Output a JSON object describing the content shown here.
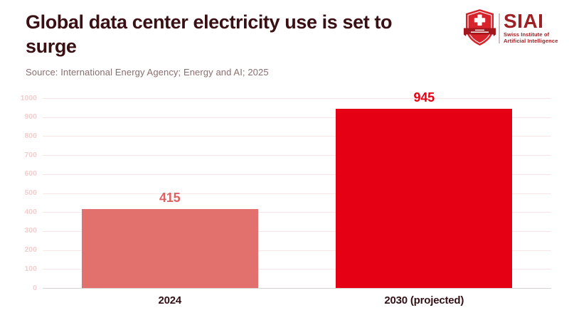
{
  "header": {
    "title_lines": [
      "Global data center electricity use is set to",
      "surge"
    ],
    "source": "Source: International Energy Agency; Energy and AI; 2025"
  },
  "logo": {
    "acronym": "SIAI",
    "subtitle_line1": "Swiss Institute of",
    "subtitle_line2": "Artificial Intelligence"
  },
  "colors": {
    "title_text": "#391114",
    "source_text": "#8a6e6e",
    "ytick_text": "#f4cdcd",
    "gridline": "#fbe6e6",
    "zero_line": "#d8d2d3",
    "xlabel_text": "#321013",
    "bar_2024": "#e2706c",
    "bar_2030": "#e60014",
    "logo_text_red": "#9e2024",
    "shield_red": "#d7232b",
    "ribbon_red": "#a3161c"
  },
  "chart_data": {
    "type": "bar",
    "title": "Global data center electricity use is set to surge",
    "source": "Source: International Energy Agency; Energy and AI; 2025",
    "categories": [
      "2024",
      "2030 (projected)"
    ],
    "values": [
      415,
      945
    ],
    "ylim": [
      0,
      1000
    ],
    "yticks": [
      0,
      100,
      200,
      300,
      400,
      500,
      600,
      700,
      800,
      900,
      1000
    ],
    "grid": true,
    "legend": false,
    "bar_colors": [
      "#e2706c",
      "#e60014"
    ],
    "value_label_colors": [
      "#dd6161",
      "#e60014"
    ]
  }
}
